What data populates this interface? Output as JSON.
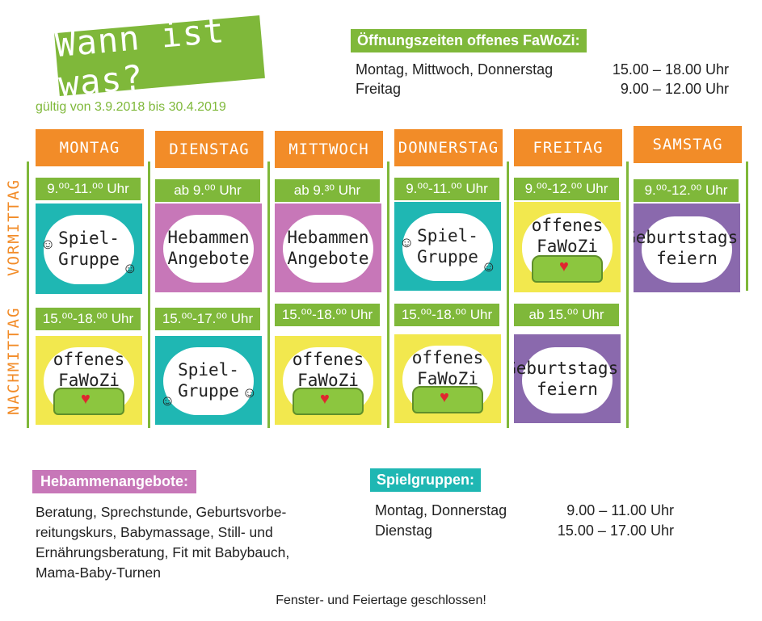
{
  "title": "Wann ist was?",
  "validity": "gültig von 3.9.2018 bis 30.4.2019",
  "opening_hours": {
    "label": "Öffnungszeiten offenes FaWoZi:",
    "rows": [
      {
        "days": "Montag, Mittwoch, Donnerstag",
        "time": "15.00 – 18.00 Uhr"
      },
      {
        "days": "Freitag",
        "time": "9.00 – 12.00 Uhr"
      }
    ]
  },
  "side_labels": {
    "morning": "VORMITTAG",
    "afternoon": "NACHMITTAG"
  },
  "days": [
    {
      "name": "MONTAG",
      "morning": {
        "time": "9.⁰⁰-11.⁰⁰ Uhr",
        "activity": "Spiel-\nGruppe"
      },
      "afternoon": {
        "time": "15.⁰⁰-18.⁰⁰ Uhr",
        "activity": "offenes\nFaWoZi"
      }
    },
    {
      "name": "DIENSTAG",
      "morning": {
        "time": "ab 9.⁰⁰ Uhr",
        "activity": "Hebammen\nAngebote"
      },
      "afternoon": {
        "time": "15.⁰⁰-17.⁰⁰ Uhr",
        "activity": "Spiel-\nGruppe"
      }
    },
    {
      "name": "MITTWOCH",
      "morning": {
        "time": "ab 9.³⁰ Uhr",
        "activity": "Hebammen\nAngebote"
      },
      "afternoon": {
        "time": "15.⁰⁰-18.⁰⁰ Uhr",
        "activity": "offenes\nFaWoZi"
      }
    },
    {
      "name": "DONNERSTAG",
      "morning": {
        "time": "9.⁰⁰-11.⁰⁰ Uhr",
        "activity": "Spiel-\nGruppe"
      },
      "afternoon": {
        "time": "15.⁰⁰-18.⁰⁰ Uhr",
        "activity": "offenes\nFaWoZi"
      }
    },
    {
      "name": "FREITAG",
      "morning": {
        "time": "9.⁰⁰-12.⁰⁰ Uhr",
        "activity": "offenes\nFaWoZi"
      },
      "afternoon": {
        "time": "ab 15.⁰⁰ Uhr",
        "activity": "Geburtstags-\nfeiern"
      }
    },
    {
      "name": "SAMSTAG",
      "morning": {
        "time": "9.⁰⁰-12.⁰⁰ Uhr",
        "activity": "Geburtstags-\nfeiern"
      }
    }
  ],
  "hebammen": {
    "label": "Hebammenangebote:",
    "lines": [
      "Beratung, Sprechstunde, Geburtsvorbe-",
      "reitungskurs, Babymassage, Still- und",
      "Ernährungsberatung, Fit mit Babybauch,",
      "Mama-Baby-Turnen"
    ]
  },
  "spielgruppen": {
    "label": "Spielgruppen:",
    "rows": [
      {
        "days": "Montag, Donnerstag",
        "time": "9.00 – 11.00 Uhr"
      },
      {
        "days": "Dienstag",
        "time": "15.00 – 17.00 Uhr"
      }
    ]
  },
  "closed_note": "Fenster- und Feiertage geschlossen!"
}
